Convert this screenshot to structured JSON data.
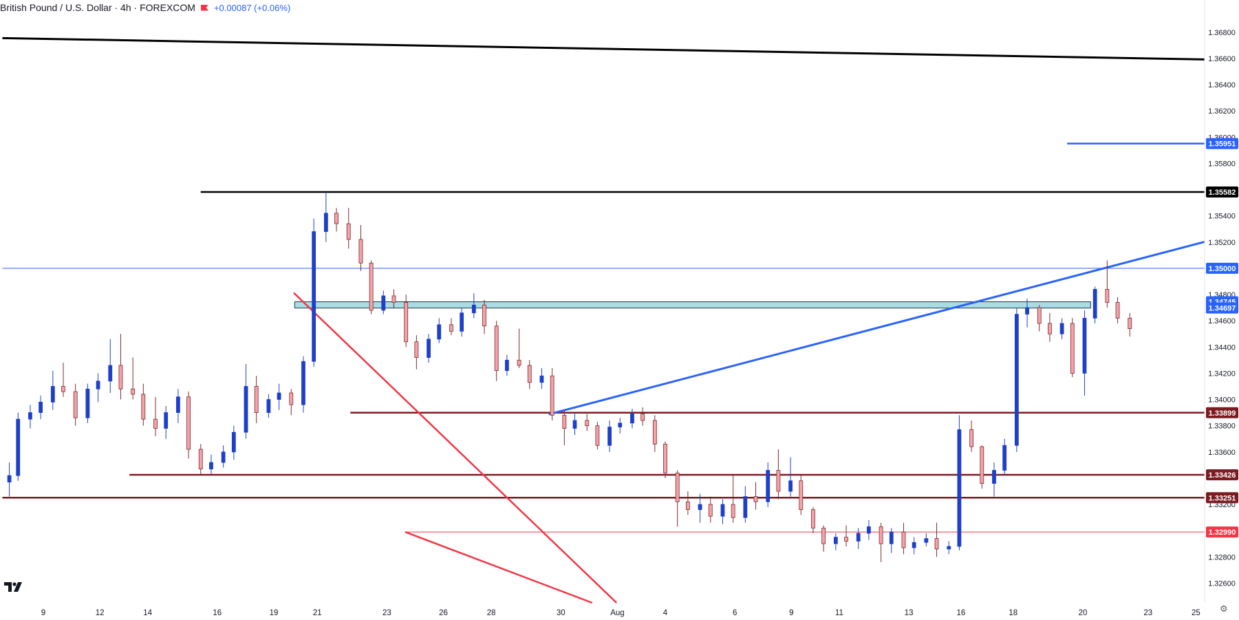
{
  "header": {
    "symbol": "British Pound / U.S. Dollar · 4h · FOREXCOM",
    "flag_icon": "red-flag-icon",
    "change": "+0.00087 (+0.06%)"
  },
  "footer": {
    "logo_icon": "tradingview-logo-icon",
    "settings_icon": "gear-icon"
  },
  "colors": {
    "up": "#1e40c8",
    "down": "#f4a3a8",
    "down_border": "#7a2a2f",
    "support": "#7b1c22",
    "blue": "#2962ff",
    "red": "#f23645",
    "black": "#000000",
    "zone": "#a9dce3"
  },
  "chart_data": {
    "type": "candlestick",
    "title": "British Pound / U.S. Dollar · 4h · FOREXCOM",
    "ylim": [
      1.3245,
      1.3693
    ],
    "xlim": [
      0,
      138
    ],
    "y_ticks": [
      "1.36800",
      "1.36600",
      "1.36400",
      "1.36200",
      "1.36000",
      "1.35800",
      "1.35400",
      "1.35200",
      "1.34800",
      "1.34600",
      "1.34400",
      "1.34200",
      "1.34000",
      "1.33800",
      "1.33600",
      "1.33200",
      "1.32800",
      "1.32600"
    ],
    "x_ticks": [
      {
        "x": 4.5,
        "label": "9"
      },
      {
        "x": 11,
        "label": "12"
      },
      {
        "x": 16.5,
        "label": "14"
      },
      {
        "x": 24.5,
        "label": "16"
      },
      {
        "x": 31,
        "label": "19"
      },
      {
        "x": 36,
        "label": "21"
      },
      {
        "x": 44,
        "label": "23"
      },
      {
        "x": 50.5,
        "label": "26"
      },
      {
        "x": 56,
        "label": "28"
      },
      {
        "x": 64,
        "label": "30"
      },
      {
        "x": 70.5,
        "label": "Aug"
      },
      {
        "x": 76,
        "label": "4"
      },
      {
        "x": 84,
        "label": "6"
      },
      {
        "x": 90.5,
        "label": "9"
      },
      {
        "x": 96,
        "label": "11"
      },
      {
        "x": 104,
        "label": "13"
      },
      {
        "x": 110,
        "label": "16"
      },
      {
        "x": 116,
        "label": "18"
      },
      {
        "x": 124,
        "label": "20"
      },
      {
        "x": 131.5,
        "label": "23"
      },
      {
        "x": 137,
        "label": "25"
      }
    ],
    "price_tags": [
      {
        "label": "1.35951",
        "value": 1.35951,
        "style": "blue"
      },
      {
        "label": "1.35582",
        "value": 1.35582,
        "style": "black"
      },
      {
        "label": "1.35000",
        "value": 1.35,
        "style": "blue"
      },
      {
        "label": "1.34745",
        "value": 1.34745,
        "style": "blue"
      },
      {
        "label": "1.34697",
        "value": 1.34697,
        "style": "blue"
      },
      {
        "label": "1.33899",
        "value": 1.33899,
        "style": "support"
      },
      {
        "label": "1.33426",
        "value": 1.33426,
        "style": "support"
      },
      {
        "label": "1.33251",
        "value": 1.33251,
        "style": "support"
      },
      {
        "label": "1.32990",
        "value": 1.3299,
        "style": "red"
      }
    ],
    "lines": [
      {
        "kind": "trendline",
        "color": "black",
        "x1": -0.2,
        "y1": 1.36755,
        "x2": 138,
        "y2": 1.36592,
        "width": 3
      },
      {
        "kind": "segment",
        "color": "black",
        "x1": 22.6,
        "y1": 1.35582,
        "x2": 138,
        "y2": 1.35582,
        "width": 2.5
      },
      {
        "kind": "segment",
        "color": "blue",
        "x1": 122.2,
        "y1": 1.35951,
        "x2": 138,
        "y2": 1.35951,
        "width": 2.5
      },
      {
        "kind": "segment",
        "color": "blue",
        "x1": -0.2,
        "y1": 1.35,
        "x2": 138,
        "y2": 1.35,
        "width": 1
      },
      {
        "kind": "segment",
        "color": "support",
        "x1": 39.8,
        "y1": 1.33899,
        "x2": 138,
        "y2": 1.33899,
        "width": 2.5
      },
      {
        "kind": "segment",
        "color": "support",
        "x1": 14.4,
        "y1": 1.33426,
        "x2": 138,
        "y2": 1.33426,
        "width": 2.5
      },
      {
        "kind": "segment",
        "color": "support",
        "x1": -0.2,
        "y1": 1.33251,
        "x2": 138,
        "y2": 1.33251,
        "width": 2.5
      },
      {
        "kind": "segment",
        "color": "red",
        "x1": 46.1,
        "y1": 1.3299,
        "x2": 138,
        "y2": 1.3299,
        "width": 1
      },
      {
        "kind": "trendline",
        "color": "red",
        "x1": 33.3,
        "y1": 1.34813,
        "x2": 70.4,
        "y2": 1.3245,
        "width": 2.5
      },
      {
        "kind": "trendline",
        "color": "red",
        "x1": 46.1,
        "y1": 1.3299,
        "x2": 67.6,
        "y2": 1.3245,
        "width": 2.5
      },
      {
        "kind": "trendline",
        "color": "blue",
        "x1": 62.6,
        "y1": 1.33887,
        "x2": 138,
        "y2": 1.35202,
        "width": 3
      }
    ],
    "zone": {
      "x1": 33.4,
      "x2": 124.9,
      "y_top": 1.34745,
      "y_bottom": 1.34697
    },
    "candles": [
      {
        "o": 1.3337,
        "h": 1.3352,
        "l": 1.3326,
        "c": 1.3342
      },
      {
        "o": 1.3342,
        "h": 1.339,
        "l": 1.3338,
        "c": 1.3385
      },
      {
        "o": 1.3385,
        "h": 1.3396,
        "l": 1.3378,
        "c": 1.339
      },
      {
        "o": 1.339,
        "h": 1.3403,
        "l": 1.3385,
        "c": 1.3398
      },
      {
        "o": 1.3398,
        "h": 1.3422,
        "l": 1.3392,
        "c": 1.341
      },
      {
        "o": 1.341,
        "h": 1.3428,
        "l": 1.3402,
        "c": 1.3406
      },
      {
        "o": 1.3406,
        "h": 1.3412,
        "l": 1.338,
        "c": 1.3386
      },
      {
        "o": 1.3386,
        "h": 1.3412,
        "l": 1.3382,
        "c": 1.3408
      },
      {
        "o": 1.3408,
        "h": 1.342,
        "l": 1.3398,
        "c": 1.3414
      },
      {
        "o": 1.3414,
        "h": 1.3446,
        "l": 1.3405,
        "c": 1.3426
      },
      {
        "o": 1.3426,
        "h": 1.345,
        "l": 1.34,
        "c": 1.3408
      },
      {
        "o": 1.3408,
        "h": 1.3432,
        "l": 1.34,
        "c": 1.3404
      },
      {
        "o": 1.3404,
        "h": 1.3412,
        "l": 1.338,
        "c": 1.3385
      },
      {
        "o": 1.3385,
        "h": 1.3402,
        "l": 1.3372,
        "c": 1.3378
      },
      {
        "o": 1.3378,
        "h": 1.3395,
        "l": 1.337,
        "c": 1.339
      },
      {
        "o": 1.339,
        "h": 1.3408,
        "l": 1.3382,
        "c": 1.3402
      },
      {
        "o": 1.3402,
        "h": 1.3406,
        "l": 1.3355,
        "c": 1.3362
      },
      {
        "o": 1.3362,
        "h": 1.3366,
        "l": 1.3342,
        "c": 1.3347
      },
      {
        "o": 1.3347,
        "h": 1.3358,
        "l": 1.3343,
        "c": 1.3352
      },
      {
        "o": 1.3352,
        "h": 1.3365,
        "l": 1.3348,
        "c": 1.336
      },
      {
        "o": 1.336,
        "h": 1.338,
        "l": 1.3354,
        "c": 1.3375
      },
      {
        "o": 1.3375,
        "h": 1.3427,
        "l": 1.337,
        "c": 1.341
      },
      {
        "o": 1.341,
        "h": 1.3418,
        "l": 1.3382,
        "c": 1.339
      },
      {
        "o": 1.339,
        "h": 1.3404,
        "l": 1.3386,
        "c": 1.34
      },
      {
        "o": 1.34,
        "h": 1.3412,
        "l": 1.3392,
        "c": 1.3405
      },
      {
        "o": 1.3405,
        "h": 1.3408,
        "l": 1.3388,
        "c": 1.3396
      },
      {
        "o": 1.3396,
        "h": 1.3433,
        "l": 1.339,
        "c": 1.3429
      },
      {
        "o": 1.3429,
        "h": 1.3538,
        "l": 1.3425,
        "c": 1.3528
      },
      {
        "o": 1.3528,
        "h": 1.3558,
        "l": 1.352,
        "c": 1.3542
      },
      {
        "o": 1.3542,
        "h": 1.3546,
        "l": 1.3528,
        "c": 1.3534
      },
      {
        "o": 1.3534,
        "h": 1.3546,
        "l": 1.3515,
        "c": 1.3522
      },
      {
        "o": 1.3522,
        "h": 1.3533,
        "l": 1.3498,
        "c": 1.3504
      },
      {
        "o": 1.3504,
        "h": 1.3506,
        "l": 1.3465,
        "c": 1.3468
      },
      {
        "o": 1.3468,
        "h": 1.3483,
        "l": 1.3465,
        "c": 1.3479
      },
      {
        "o": 1.3479,
        "h": 1.3484,
        "l": 1.347,
        "c": 1.3474
      },
      {
        "o": 1.3474,
        "h": 1.348,
        "l": 1.344,
        "c": 1.3444
      },
      {
        "o": 1.3444,
        "h": 1.3449,
        "l": 1.3423,
        "c": 1.3432
      },
      {
        "o": 1.3432,
        "h": 1.345,
        "l": 1.3428,
        "c": 1.3446
      },
      {
        "o": 1.3446,
        "h": 1.3462,
        "l": 1.3443,
        "c": 1.3457
      },
      {
        "o": 1.3457,
        "h": 1.3462,
        "l": 1.3449,
        "c": 1.3452
      },
      {
        "o": 1.3452,
        "h": 1.347,
        "l": 1.3448,
        "c": 1.3466
      },
      {
        "o": 1.3466,
        "h": 1.3481,
        "l": 1.3462,
        "c": 1.3472
      },
      {
        "o": 1.3472,
        "h": 1.3476,
        "l": 1.345,
        "c": 1.3456
      },
      {
        "o": 1.3456,
        "h": 1.346,
        "l": 1.3414,
        "c": 1.3422
      },
      {
        "o": 1.3422,
        "h": 1.3434,
        "l": 1.3418,
        "c": 1.343
      },
      {
        "o": 1.343,
        "h": 1.3454,
        "l": 1.3424,
        "c": 1.3426
      },
      {
        "o": 1.3426,
        "h": 1.343,
        "l": 1.3408,
        "c": 1.3413
      },
      {
        "o": 1.3413,
        "h": 1.3424,
        "l": 1.3408,
        "c": 1.3418
      },
      {
        "o": 1.3418,
        "h": 1.3424,
        "l": 1.3384,
        "c": 1.3388
      },
      {
        "o": 1.3388,
        "h": 1.3392,
        "l": 1.3365,
        "c": 1.3378
      },
      {
        "o": 1.3378,
        "h": 1.339,
        "l": 1.3373,
        "c": 1.3384
      },
      {
        "o": 1.3384,
        "h": 1.3389,
        "l": 1.3376,
        "c": 1.338
      },
      {
        "o": 1.338,
        "h": 1.3383,
        "l": 1.3362,
        "c": 1.3365
      },
      {
        "o": 1.3365,
        "h": 1.3384,
        "l": 1.336,
        "c": 1.3379
      },
      {
        "o": 1.3379,
        "h": 1.3386,
        "l": 1.3374,
        "c": 1.3382
      },
      {
        "o": 1.3382,
        "h": 1.3393,
        "l": 1.3378,
        "c": 1.3389
      },
      {
        "o": 1.3389,
        "h": 1.3394,
        "l": 1.338,
        "c": 1.3384
      },
      {
        "o": 1.3384,
        "h": 1.3388,
        "l": 1.336,
        "c": 1.3366
      },
      {
        "o": 1.3366,
        "h": 1.3368,
        "l": 1.334,
        "c": 1.3344
      },
      {
        "o": 1.3344,
        "h": 1.3346,
        "l": 1.3303,
        "c": 1.3322
      },
      {
        "o": 1.3322,
        "h": 1.333,
        "l": 1.3312,
        "c": 1.3316
      },
      {
        "o": 1.3316,
        "h": 1.3328,
        "l": 1.3306,
        "c": 1.332
      },
      {
        "o": 1.332,
        "h": 1.3326,
        "l": 1.3306,
        "c": 1.3311
      },
      {
        "o": 1.3311,
        "h": 1.3324,
        "l": 1.3305,
        "c": 1.332
      },
      {
        "o": 1.332,
        "h": 1.3342,
        "l": 1.3306,
        "c": 1.331
      },
      {
        "o": 1.331,
        "h": 1.3334,
        "l": 1.3306,
        "c": 1.3326
      },
      {
        "o": 1.3326,
        "h": 1.3337,
        "l": 1.3316,
        "c": 1.3322
      },
      {
        "o": 1.3322,
        "h": 1.3352,
        "l": 1.3318,
        "c": 1.3346
      },
      {
        "o": 1.3346,
        "h": 1.3362,
        "l": 1.3324,
        "c": 1.333
      },
      {
        "o": 1.333,
        "h": 1.3356,
        "l": 1.3326,
        "c": 1.3338
      },
      {
        "o": 1.3338,
        "h": 1.3342,
        "l": 1.3312,
        "c": 1.3316
      },
      {
        "o": 1.3316,
        "h": 1.3318,
        "l": 1.3298,
        "c": 1.3302
      },
      {
        "o": 1.3302,
        "h": 1.3304,
        "l": 1.3284,
        "c": 1.329
      },
      {
        "o": 1.329,
        "h": 1.3298,
        "l": 1.3285,
        "c": 1.3295
      },
      {
        "o": 1.3295,
        "h": 1.3304,
        "l": 1.3288,
        "c": 1.3292
      },
      {
        "o": 1.3292,
        "h": 1.3302,
        "l": 1.3286,
        "c": 1.3298
      },
      {
        "o": 1.3298,
        "h": 1.3308,
        "l": 1.3293,
        "c": 1.3303
      },
      {
        "o": 1.3303,
        "h": 1.3306,
        "l": 1.3276,
        "c": 1.329
      },
      {
        "o": 1.329,
        "h": 1.3302,
        "l": 1.3283,
        "c": 1.3299
      },
      {
        "o": 1.3299,
        "h": 1.3306,
        "l": 1.3282,
        "c": 1.3287
      },
      {
        "o": 1.3287,
        "h": 1.3295,
        "l": 1.3282,
        "c": 1.3291
      },
      {
        "o": 1.3291,
        "h": 1.3298,
        "l": 1.3288,
        "c": 1.3294
      },
      {
        "o": 1.3294,
        "h": 1.3306,
        "l": 1.328,
        "c": 1.3286
      },
      {
        "o": 1.3286,
        "h": 1.3292,
        "l": 1.3282,
        "c": 1.3288
      },
      {
        "o": 1.3288,
        "h": 1.3388,
        "l": 1.3285,
        "c": 1.3377
      },
      {
        "o": 1.3377,
        "h": 1.3384,
        "l": 1.336,
        "c": 1.3364
      },
      {
        "o": 1.3364,
        "h": 1.3365,
        "l": 1.3332,
        "c": 1.3336
      },
      {
        "o": 1.3336,
        "h": 1.3352,
        "l": 1.3326,
        "c": 1.3346
      },
      {
        "o": 1.3346,
        "h": 1.337,
        "l": 1.3342,
        "c": 1.3365
      },
      {
        "o": 1.3365,
        "h": 1.347,
        "l": 1.336,
        "c": 1.3465
      },
      {
        "o": 1.3465,
        "h": 1.3477,
        "l": 1.3455,
        "c": 1.347
      },
      {
        "o": 1.347,
        "h": 1.3472,
        "l": 1.3452,
        "c": 1.3458
      },
      {
        "o": 1.3458,
        "h": 1.3466,
        "l": 1.3444,
        "c": 1.345
      },
      {
        "o": 1.345,
        "h": 1.3462,
        "l": 1.3446,
        "c": 1.3458
      },
      {
        "o": 1.3458,
        "h": 1.3462,
        "l": 1.3417,
        "c": 1.342
      },
      {
        "o": 1.342,
        "h": 1.3468,
        "l": 1.3403,
        "c": 1.3462
      },
      {
        "o": 1.3462,
        "h": 1.3486,
        "l": 1.3458,
        "c": 1.3484
      },
      {
        "o": 1.3484,
        "h": 1.3506,
        "l": 1.347,
        "c": 1.3474
      },
      {
        "o": 1.3474,
        "h": 1.3478,
        "l": 1.3458,
        "c": 1.3462
      },
      {
        "o": 1.3462,
        "h": 1.3466,
        "l": 1.3448,
        "c": 1.3454
      }
    ],
    "candle_x": [
      0.0,
      0.5,
      1.2,
      1.8,
      2.5,
      3.1,
      3.8,
      4.5,
      5.1,
      5.8,
      6.4,
      7.1,
      7.7,
      8.4,
      9.0,
      9.7,
      10.3,
      11.0,
      11.6,
      12.3,
      12.9,
      13.6,
      14.2,
      14.9,
      15.5,
      16.2,
      16.9,
      17.5,
      18.2,
      18.8,
      19.5,
      20.2,
      20.8,
      21.5,
      22.1,
      22.8,
      23.4,
      24.1,
      24.7,
      25.4,
      26.0,
      26.7,
      27.3,
      28.0,
      28.6,
      29.3,
      29.9,
      30.6,
      31.2,
      31.9,
      32.5,
      33.2,
      33.8,
      34.5,
      35.1,
      35.8,
      36.4,
      37.1,
      37.7,
      38.4,
      39.0,
      39.7,
      40.3,
      41.0,
      41.6,
      42.3,
      42.9,
      43.6,
      44.2,
      44.9,
      45.5,
      46.2,
      46.8,
      47.5,
      48.1,
      48.8,
      49.4,
      50.1,
      50.7,
      51.4,
      52.0,
      52.7,
      53.3,
      54.0,
      54.6,
      55.3,
      55.9,
      56.6,
      57.2,
      57.9,
      58.5,
      59.2,
      59.8,
      60.5,
      61.1,
      61.8,
      62.4,
      63.1,
      63.7,
      64.4
    ]
  }
}
